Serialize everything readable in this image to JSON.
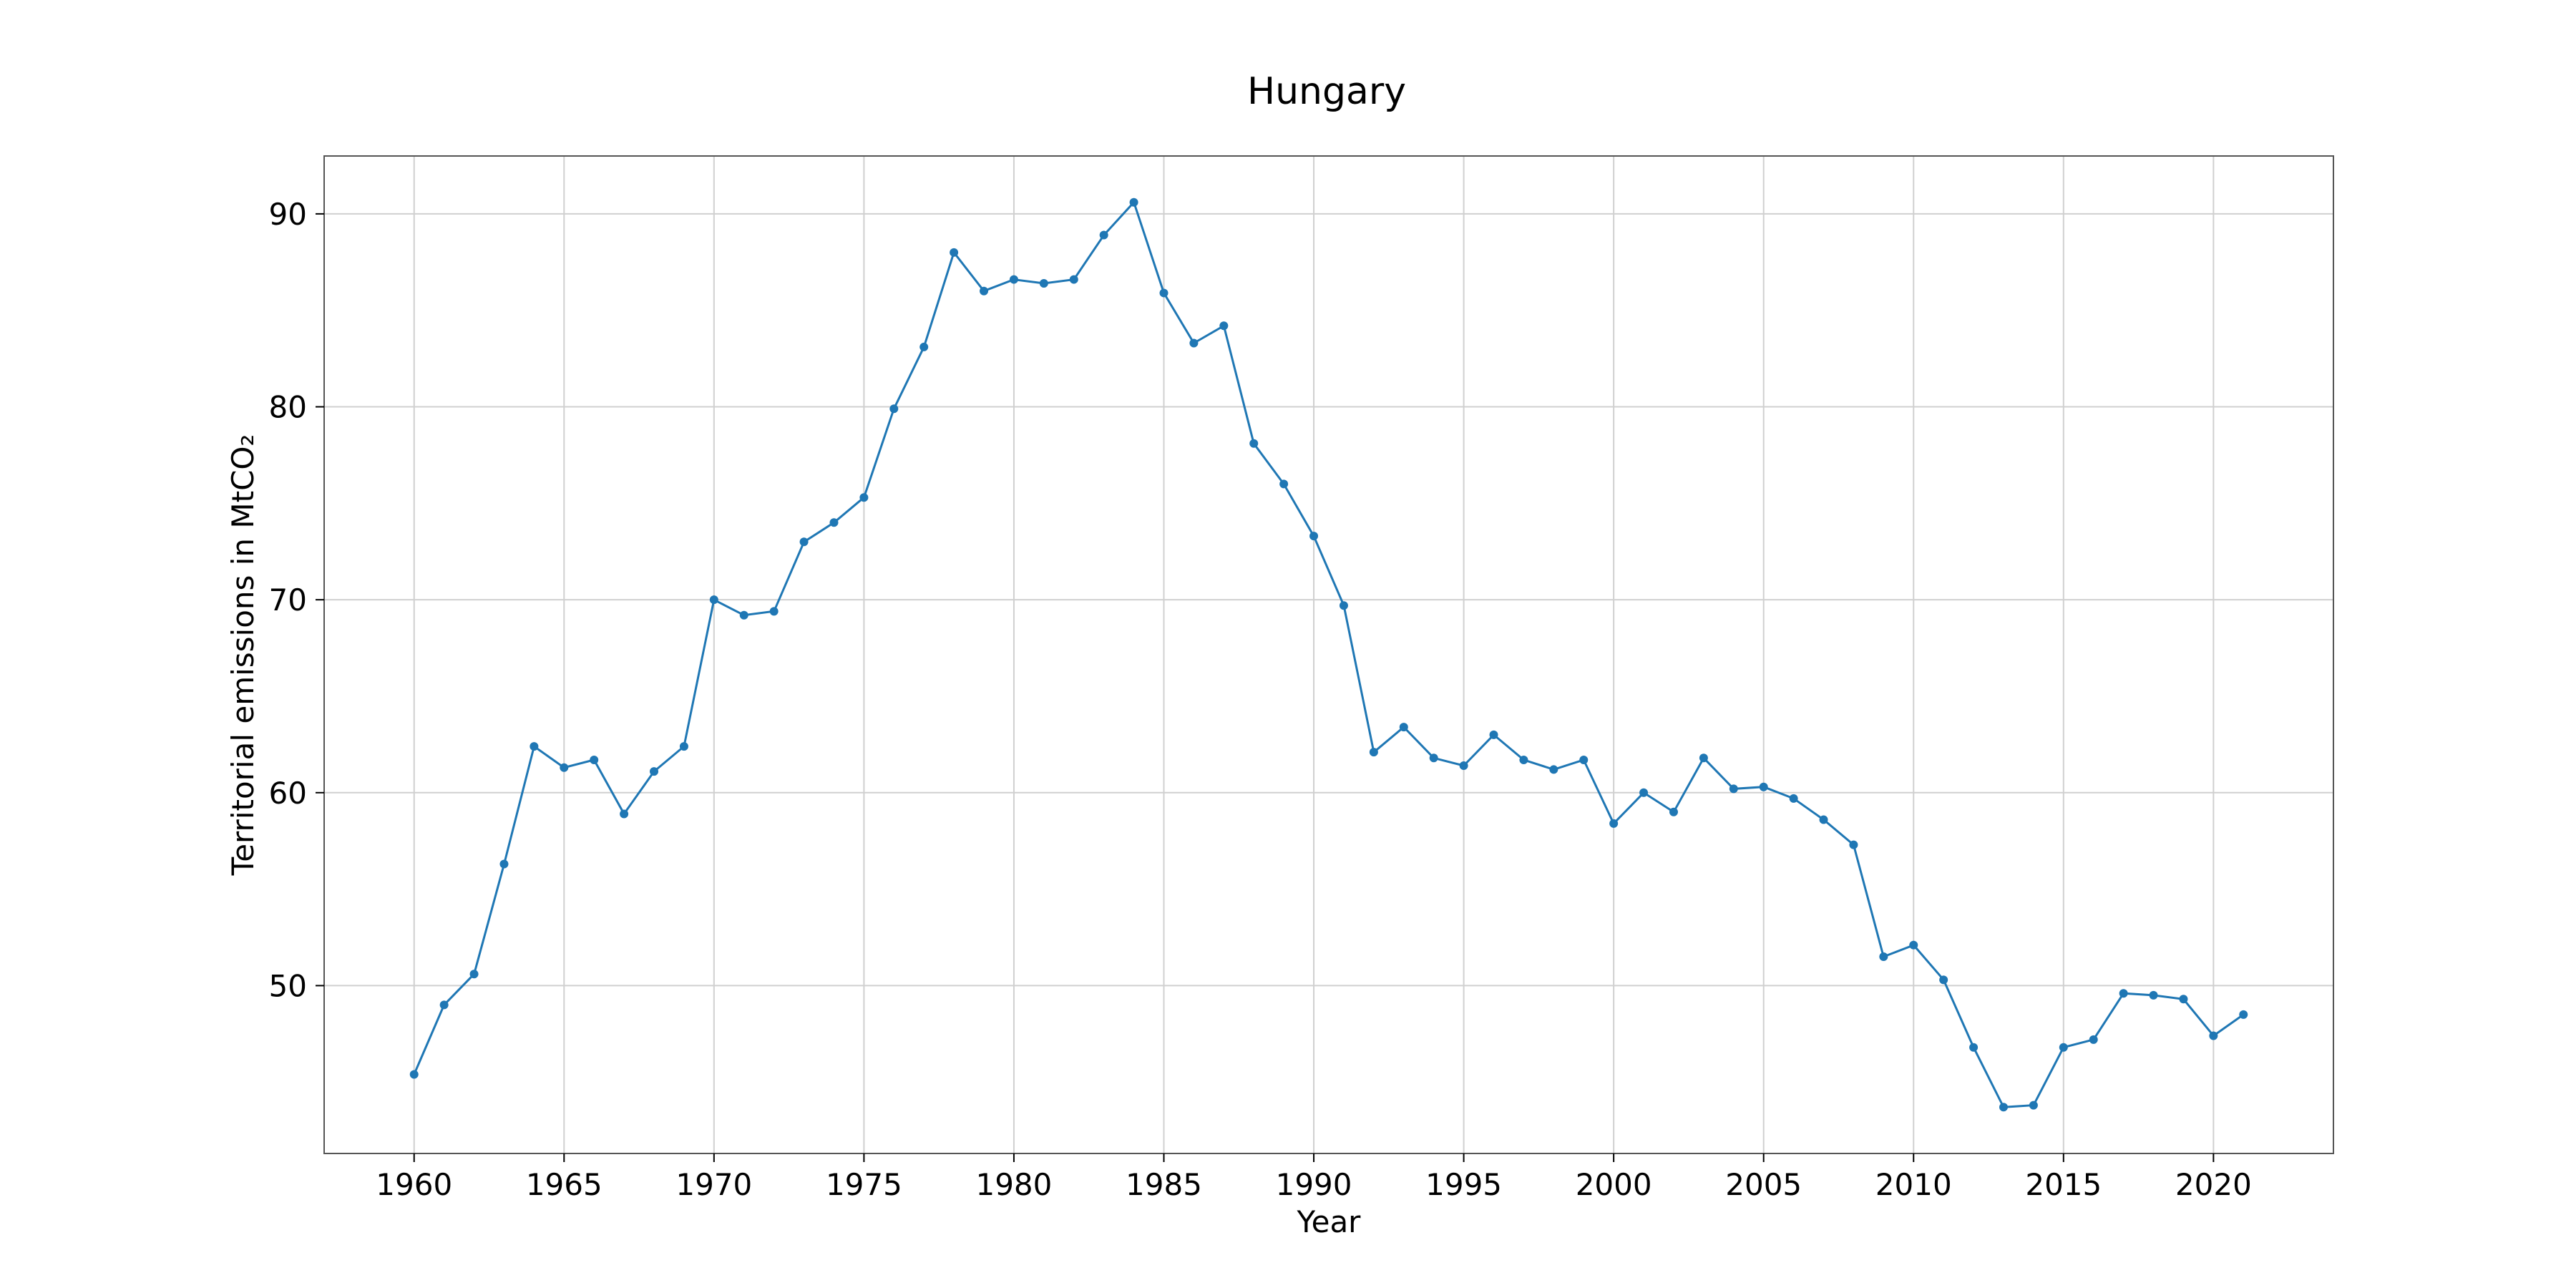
{
  "chart_data": {
    "type": "line",
    "title": "Hungary",
    "xlabel": "Year",
    "ylabel": "Territorial emissions in MtCO₂",
    "xlim": [
      1957,
      2024
    ],
    "ylim": [
      41.3,
      93
    ],
    "xticks": [
      1960,
      1965,
      1970,
      1975,
      1980,
      1985,
      1990,
      1995,
      2000,
      2005,
      2010,
      2015,
      2020
    ],
    "yticks": [
      50,
      60,
      70,
      80,
      90
    ],
    "grid": true,
    "color": "#1f77b4",
    "x": [
      1960,
      1961,
      1962,
      1963,
      1964,
      1965,
      1966,
      1967,
      1968,
      1969,
      1970,
      1971,
      1972,
      1973,
      1974,
      1975,
      1976,
      1977,
      1978,
      1979,
      1980,
      1981,
      1982,
      1983,
      1984,
      1985,
      1986,
      1987,
      1988,
      1989,
      1990,
      1991,
      1992,
      1993,
      1994,
      1995,
      1996,
      1997,
      1998,
      1999,
      2000,
      2001,
      2002,
      2003,
      2004,
      2005,
      2006,
      2007,
      2008,
      2009,
      2010,
      2011,
      2012,
      2013,
      2014,
      2015,
      2016,
      2017,
      2018,
      2019,
      2020,
      2021
    ],
    "y": [
      45.4,
      49.0,
      50.6,
      56.3,
      62.4,
      61.3,
      61.7,
      58.9,
      61.1,
      62.4,
      70.0,
      69.2,
      69.4,
      73.0,
      74.0,
      75.3,
      79.9,
      83.1,
      88.0,
      86.0,
      86.6,
      86.4,
      86.6,
      88.9,
      90.6,
      85.9,
      83.3,
      84.2,
      78.1,
      76.0,
      73.3,
      69.7,
      62.1,
      63.4,
      61.8,
      61.4,
      63.0,
      61.7,
      61.2,
      61.7,
      58.4,
      60.0,
      59.0,
      61.8,
      60.2,
      60.3,
      59.7,
      58.6,
      57.3,
      51.5,
      52.1,
      50.3,
      46.8,
      43.7,
      43.8,
      46.8,
      47.2,
      49.6,
      49.5,
      49.3,
      47.4,
      48.5
    ]
  }
}
